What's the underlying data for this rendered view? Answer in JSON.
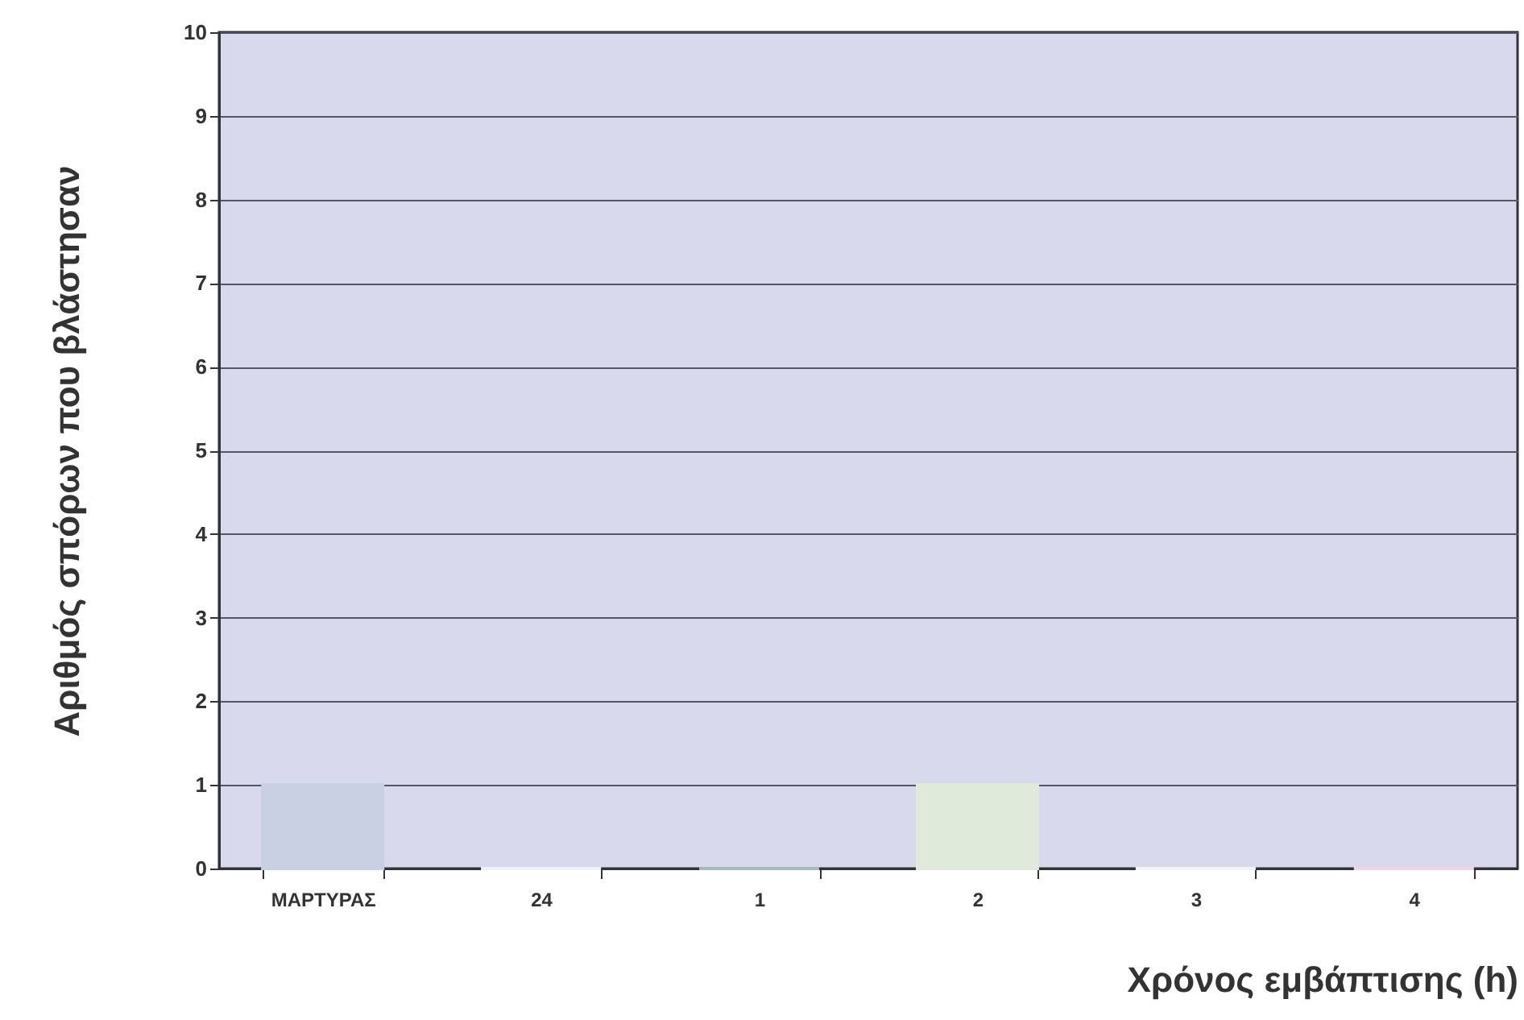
{
  "chart_data": {
    "type": "bar",
    "xlabel": "Χρόνος εμβάπτισης (h)",
    "ylabel": "Αριθμός σπόρων που βλάστησαν",
    "categories": [
      "ΜΑΡΤΥΡΑΣ",
      "24",
      "1",
      "2",
      "3",
      "4"
    ],
    "values": [
      1,
      0,
      0,
      1,
      0,
      0
    ],
    "colors": [
      "#c9d0e3",
      "#f2f2f6",
      "#a4babf",
      "#dfeadb",
      "#f4f4f4",
      "#eed6e2"
    ],
    "ylim": [
      0,
      10
    ],
    "yticks": [
      0,
      1,
      2,
      3,
      4,
      5,
      6,
      7,
      8,
      9,
      10
    ],
    "grid": "y",
    "legend": false
  }
}
